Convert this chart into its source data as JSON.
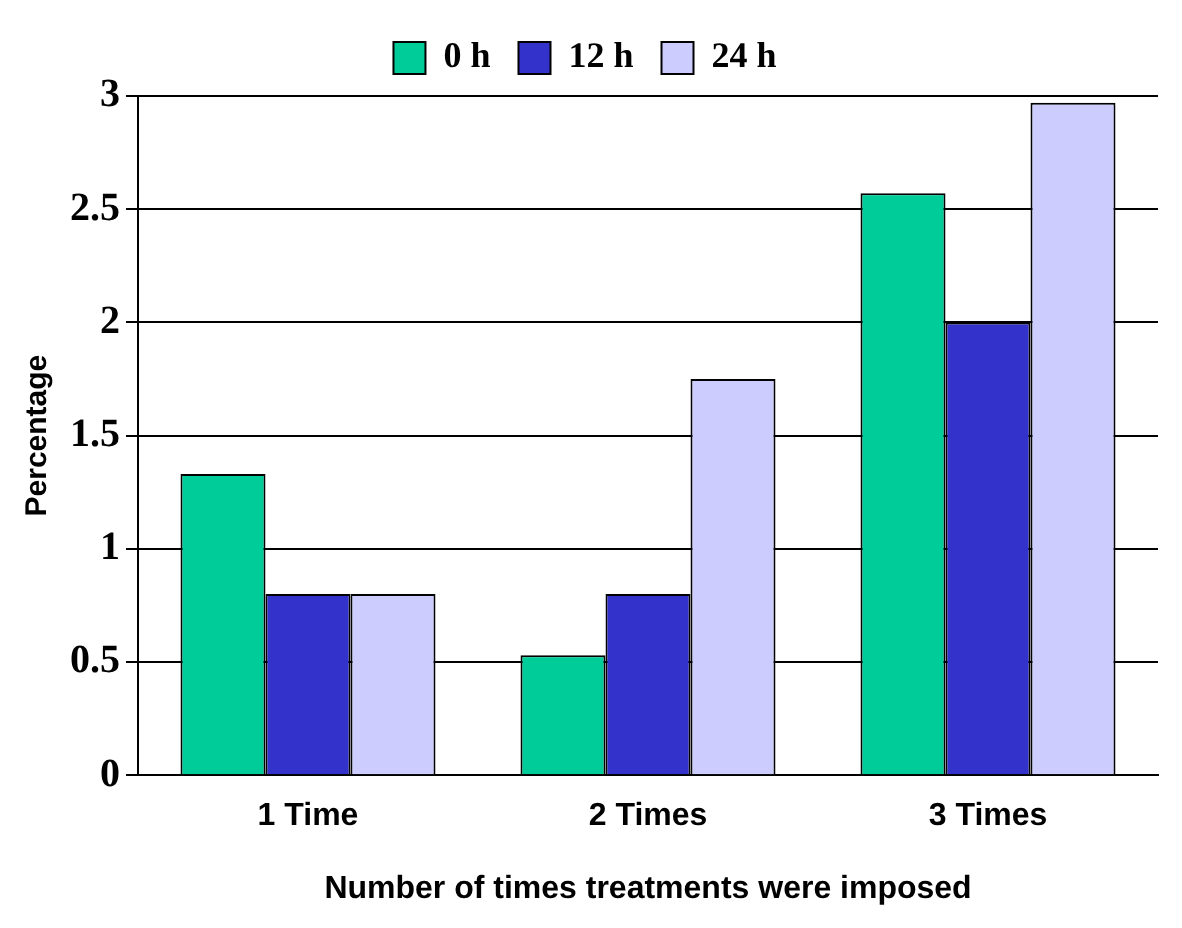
{
  "chart_data": {
    "type": "bar",
    "xlabel": "Number of times treatments were imposed",
    "ylabel": "Percentage",
    "categories": [
      "1 Time",
      "2 Times",
      "3 Times"
    ],
    "series": [
      {
        "name": "0 h",
        "color": "#00cc99",
        "values": [
          1.33,
          0.53,
          2.57
        ]
      },
      {
        "name": "12 h",
        "color": "#3333cc",
        "values": [
          0.8,
          0.8,
          2.0
        ]
      },
      {
        "name": "24 h",
        "color": "#ccccff",
        "values": [
          0.8,
          1.75,
          2.97
        ]
      }
    ],
    "ylim": [
      0,
      3
    ],
    "yticks": [
      0,
      0.5,
      1,
      1.5,
      2,
      2.5,
      3
    ],
    "grid": "y",
    "legend": "top"
  }
}
